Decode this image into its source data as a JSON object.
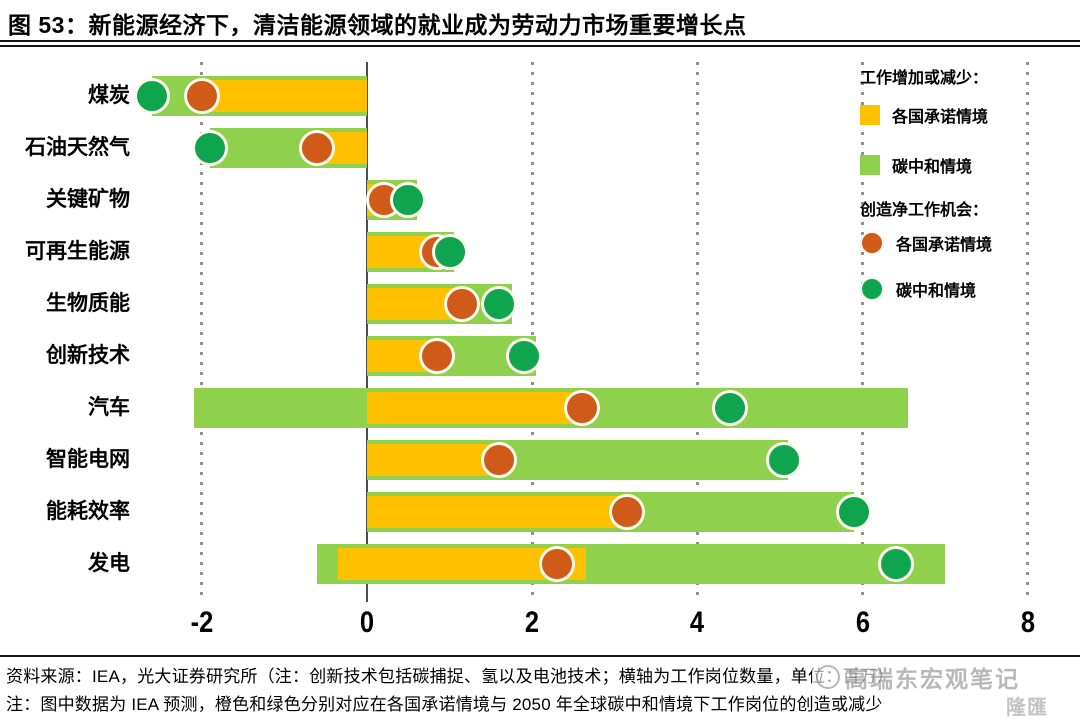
{
  "title": "图 53：新能源经济下，清洁能源领域的就业成为劳动力市场重要增长点",
  "legend": {
    "bars_header": "工作增加或减少：",
    "dots_header": "创造净工作机会：",
    "aps_label": "各国承诺情境",
    "cns_label": "碳中和情境"
  },
  "colors": {
    "aps_bar": "#FFC000",
    "cns_bar": "#8FD04D",
    "aps_dot": "#D05A18",
    "cns_dot": "#0FA44E",
    "dot_ring": "#FFFCEE"
  },
  "chart_data": {
    "type": "bar",
    "orientation": "horizontal",
    "title": "新能源经济下，清洁能源领域的就业成为劳动力市场重要增长点",
    "unit_note": "单位：百万",
    "x_ticks": [
      -2,
      0,
      2,
      4,
      6,
      8
    ],
    "xlim": [
      -2.75,
      8.6
    ],
    "grid": "dotted-vertical",
    "legend_position": "top-right",
    "categories": [
      "煤炭",
      "石油天然气",
      "关键矿物",
      "可再生能源",
      "生物质能",
      "创新技术",
      "汽车",
      "智能电网",
      "能耗效率",
      "发电"
    ],
    "series": [
      {
        "name": "工作增加或减少-各国承诺情境",
        "type": "range-bar",
        "color": "#FFC000",
        "ranges": [
          [
            -2.0,
            0
          ],
          [
            -0.6,
            0
          ],
          [
            0,
            0.3
          ],
          [
            0,
            0.9
          ],
          [
            0,
            1.25
          ],
          [
            0,
            0.85
          ],
          [
            0,
            2.7
          ],
          [
            0,
            1.65
          ],
          [
            0,
            3.15
          ],
          [
            -0.35,
            2.65
          ]
        ]
      },
      {
        "name": "工作增加或减少-碳中和情境",
        "type": "range-bar",
        "color": "#8FD04D",
        "ranges": [
          [
            -2.6,
            0
          ],
          [
            -1.9,
            0
          ],
          [
            0,
            0.6
          ],
          [
            0,
            1.05
          ],
          [
            0,
            1.75
          ],
          [
            0,
            2.05
          ],
          [
            -2.1,
            6.55
          ],
          [
            0,
            5.1
          ],
          [
            0,
            5.9
          ],
          [
            -0.6,
            7.0
          ]
        ]
      },
      {
        "name": "创造净工作机会-各国承诺情境",
        "type": "point",
        "color": "#D05A18",
        "values": [
          -2.0,
          -0.6,
          0.2,
          0.85,
          1.15,
          0.85,
          2.6,
          1.6,
          3.15,
          2.3
        ]
      },
      {
        "name": "创造净工作机会-碳中和情境",
        "type": "point",
        "color": "#0FA44E",
        "values": [
          -2.6,
          -1.9,
          0.5,
          1.0,
          1.6,
          1.9,
          4.4,
          5.05,
          5.9,
          6.4
        ]
      }
    ]
  },
  "footer": {
    "line1": "资料来源：IEA，光大证券研究所（注：创新技术包括碳捕捉、氢以及电池技术；横轴为工作岗位数量，单位：百万）",
    "line2": "注：图中数据为 IEA 预测，橙色和绿色分别对应在各国承诺情境与 2050 年全球碳中和情境下工作岗位的创造或减少"
  },
  "watermark": {
    "text": "高瑞东宏观笔记",
    "corner": "隆匯"
  }
}
